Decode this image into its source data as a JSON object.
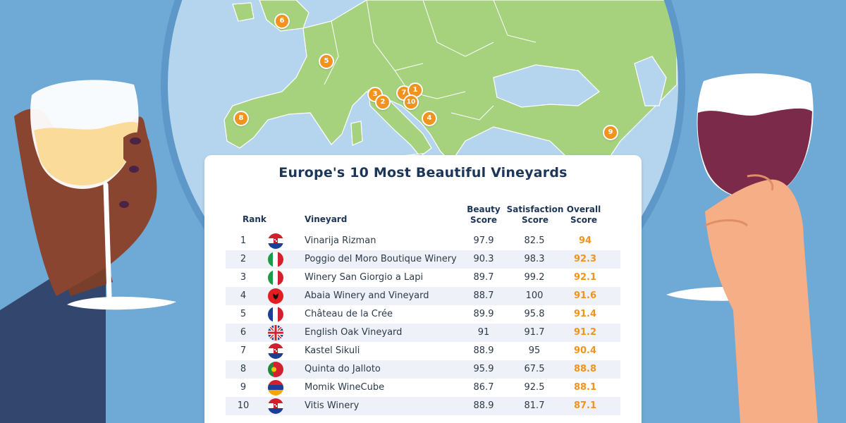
{
  "title": "Europe's 10 Most Beautiful Vineyards",
  "columns": {
    "rank": "Rank",
    "vineyard": "Vineyard",
    "beauty_line1": "Beauty",
    "beauty_line2": "Score",
    "satisfaction_line1": "Satisfaction",
    "satisfaction_line2": "Score",
    "overall_line1": "Overall",
    "overall_line2": "Score"
  },
  "rows": [
    {
      "rank": "1",
      "flag": "croatia-flag-icon",
      "name": "Vinarija Rizman",
      "beauty": "97.9",
      "satisfaction": "82.5",
      "overall": "94"
    },
    {
      "rank": "2",
      "flag": "italy-flag-icon",
      "name": "Poggio del Moro Boutique Winery",
      "beauty": "90.3",
      "satisfaction": "98.3",
      "overall": "92.3"
    },
    {
      "rank": "3",
      "flag": "italy-flag-icon",
      "name": "Winery San Giorgio a Lapi",
      "beauty": "89.7",
      "satisfaction": "99.2",
      "overall": "92.1"
    },
    {
      "rank": "4",
      "flag": "albania-flag-icon",
      "name": "Abaia Winery and Vineyard",
      "beauty": "88.7",
      "satisfaction": "100",
      "overall": "91.6"
    },
    {
      "rank": "5",
      "flag": "france-flag-icon",
      "name": "Château de la Crée",
      "beauty": "89.9",
      "satisfaction": "95.8",
      "overall": "91.4"
    },
    {
      "rank": "6",
      "flag": "uk-flag-icon",
      "name": "English Oak Vineyard",
      "beauty": "91",
      "satisfaction": "91.7",
      "overall": "91.2"
    },
    {
      "rank": "7",
      "flag": "croatia-flag-icon",
      "name": "Kastel Sikuli",
      "beauty": "88.9",
      "satisfaction": "95",
      "overall": "90.4"
    },
    {
      "rank": "8",
      "flag": "portugal-flag-icon",
      "name": "Quinta do Jalloto",
      "beauty": "95.9",
      "satisfaction": "67.5",
      "overall": "88.8"
    },
    {
      "rank": "9",
      "flag": "armenia-flag-icon",
      "name": "Momik WineCube",
      "beauty": "86.7",
      "satisfaction": "92.5",
      "overall": "88.1"
    },
    {
      "rank": "10",
      "flag": "croatia-flag-icon",
      "name": "Vitis Winery",
      "beauty": "88.9",
      "satisfaction": "81.7",
      "overall": "87.1"
    }
  ],
  "map_pins": [
    "1",
    "2",
    "3",
    "4",
    "5",
    "6",
    "7",
    "8",
    "9",
    "10"
  ],
  "colors": {
    "background": "#6fa9d6",
    "sea": "#b5d5ee",
    "land": "#a6d27e",
    "accent": "#f2931f",
    "title": "#1d3557"
  }
}
